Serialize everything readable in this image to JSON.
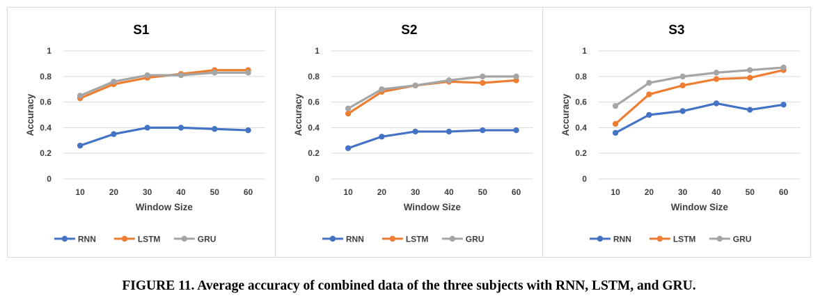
{
  "figure": {
    "caption": "FIGURE 11. Average accuracy of combined data of the three subjects with RNN, LSTM, and GRU."
  },
  "colors": {
    "RNN": "#4472c4",
    "LSTM": "#ed7d31",
    "GRU": "#a5a5a5",
    "grid": "#d9d9d9",
    "text": "#404040"
  },
  "chart_data": [
    {
      "type": "line",
      "title": "S1",
      "xlabel": "Window Size",
      "ylabel": "Accuracy",
      "ylim": [
        0,
        1
      ],
      "yticks": [
        "0",
        "0.2",
        "0.4",
        "0.6",
        "0.8",
        "1"
      ],
      "categories": [
        "10",
        "20",
        "30",
        "40",
        "50",
        "60"
      ],
      "grid": true,
      "legend": "bottom",
      "series": [
        {
          "name": "RNN",
          "values": [
            0.26,
            0.35,
            0.4,
            0.4,
            0.39,
            0.38
          ]
        },
        {
          "name": "LSTM",
          "values": [
            0.63,
            0.74,
            0.79,
            0.82,
            0.85,
            0.85
          ]
        },
        {
          "name": "GRU",
          "values": [
            0.65,
            0.76,
            0.81,
            0.81,
            0.83,
            0.83
          ]
        }
      ]
    },
    {
      "type": "line",
      "title": "S2",
      "xlabel": "Window Size",
      "ylabel": "Accuracy",
      "ylim": [
        0,
        1
      ],
      "yticks": [
        "0",
        "0.2",
        "0.4",
        "0.6",
        "0.8",
        "1"
      ],
      "categories": [
        "10",
        "20",
        "30",
        "40",
        "50",
        "60"
      ],
      "grid": true,
      "legend": "bottom",
      "series": [
        {
          "name": "RNN",
          "values": [
            0.24,
            0.33,
            0.37,
            0.37,
            0.38,
            0.38
          ]
        },
        {
          "name": "LSTM",
          "values": [
            0.51,
            0.68,
            0.73,
            0.76,
            0.75,
            0.77
          ]
        },
        {
          "name": "GRU",
          "values": [
            0.55,
            0.7,
            0.73,
            0.77,
            0.8,
            0.8
          ]
        }
      ]
    },
    {
      "type": "line",
      "title": "S3",
      "xlabel": "Window Size",
      "ylabel": "Accuracy",
      "ylim": [
        0,
        1
      ],
      "yticks": [
        "0",
        "0.2",
        "0.4",
        "0.6",
        "0.8",
        "1"
      ],
      "categories": [
        "10",
        "20",
        "30",
        "40",
        "50",
        "60"
      ],
      "grid": true,
      "legend": "bottom",
      "series": [
        {
          "name": "RNN",
          "values": [
            0.36,
            0.5,
            0.53,
            0.59,
            0.54,
            0.58
          ]
        },
        {
          "name": "LSTM",
          "values": [
            0.43,
            0.66,
            0.73,
            0.78,
            0.79,
            0.85
          ]
        },
        {
          "name": "GRU",
          "values": [
            0.57,
            0.75,
            0.8,
            0.83,
            0.85,
            0.87
          ]
        }
      ]
    }
  ]
}
